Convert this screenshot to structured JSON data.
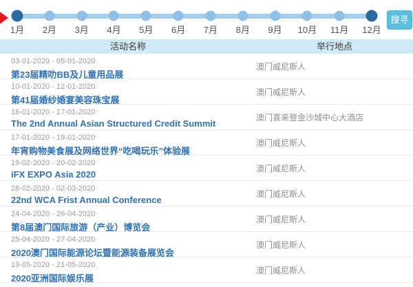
{
  "search": {
    "label": "搜寻"
  },
  "timeline": {
    "months": [
      {
        "label": "1月",
        "active": true
      },
      {
        "label": "2月",
        "active": false
      },
      {
        "label": "3月",
        "active": false
      },
      {
        "label": "4月",
        "active": false
      },
      {
        "label": "5月",
        "active": false
      },
      {
        "label": "6月",
        "active": false
      },
      {
        "label": "7月",
        "active": false
      },
      {
        "label": "8月",
        "active": false
      },
      {
        "label": "9月",
        "active": false
      },
      {
        "label": "10月",
        "active": false
      },
      {
        "label": "11月",
        "active": false
      },
      {
        "label": "12月",
        "active": true
      }
    ]
  },
  "table": {
    "headers": [
      "活动名称",
      "举行地点"
    ],
    "rows": [
      {
        "dates": "03-01-2020 - 05-01-2020",
        "name": "第23届精叻BB及儿童用品展",
        "venue": "澳门威尼斯人"
      },
      {
        "dates": "10-01-2020 - 12-01-2020",
        "name": "第41届婚纱婚宴美容珠宝展",
        "venue": "澳门威尼斯人"
      },
      {
        "dates": "16-01-2020 - 17-01-2020",
        "name": "The 2nd Annual Asian Structured Credit Summit",
        "venue": "澳门喜来登金沙城中心大酒店"
      },
      {
        "dates": "17-01-2020 - 19-01-2020",
        "name": "年宵购物美食展及网络世界“吃喝玩乐”体验展",
        "venue": "澳门威尼斯人"
      },
      {
        "dates": "19-02-2020 - 20-02-2020",
        "name": "iFX EXPO Asia 2020",
        "venue": "澳门威尼斯人"
      },
      {
        "dates": "28-02-2020 - 02-03-2020",
        "name": "22nd WCA Frist Annual Conference",
        "venue": "澳门威尼斯人"
      },
      {
        "dates": "24-04-2020 - 26-04-2020",
        "name": "第8届澳门国际旅游（产业）博览会",
        "venue": "澳门威尼斯人"
      },
      {
        "dates": "25-04-2020 - 27-04-2020",
        "name": "2020澳门国际能源论坛暨能源装备展览会",
        "venue": "澳门威尼斯人"
      },
      {
        "dates": "19-05-2020 - 21-05-2020",
        "name": "2020亚洲国际娱乐展",
        "venue": "澳门威尼斯人"
      }
    ]
  },
  "colors": {
    "accent_dark_blue": "#2b6aa3",
    "timeline_line": "#a3cdec",
    "timeline_dot": "#8fc0e6",
    "link_blue": "#2f72b8",
    "header_bg": "#cfe9f6",
    "search_button_bg": "#5bc0de",
    "red_arrow": "#e11a28",
    "date_gray": "#9a9a9a",
    "venue_gray": "#8e8e8e",
    "separator": "#dfecf5"
  }
}
